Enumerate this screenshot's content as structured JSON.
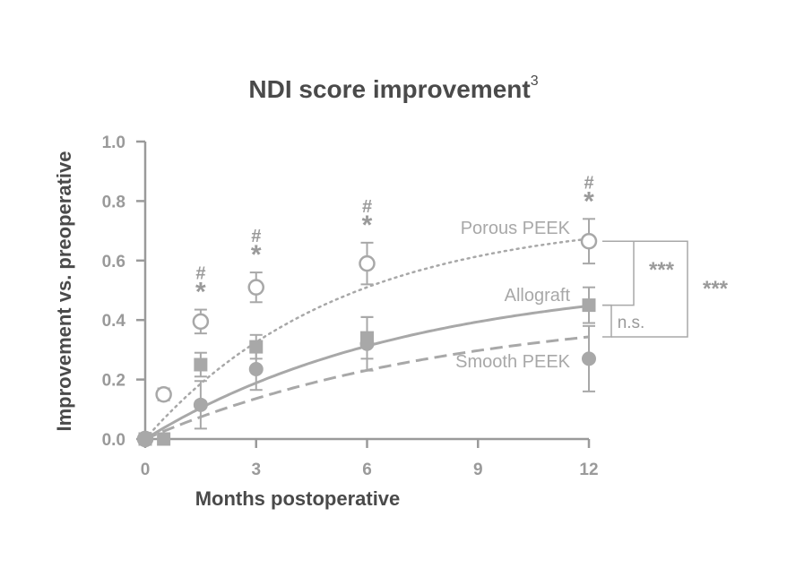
{
  "colors": {
    "axis": "#9a9a9a",
    "series": "#a8a8a8",
    "title": "#4a4a4a",
    "annotation": "#9a9a9a"
  },
  "chart_data": {
    "type": "scatter",
    "title": "NDI score improvement",
    "title_superscript": "3",
    "xlabel": "Months postoperative",
    "ylabel": "Improvement vs. preoperative",
    "xlim": [
      0,
      12
    ],
    "ylim": [
      0,
      1.0
    ],
    "xticks": [
      0,
      3,
      6,
      9,
      12
    ],
    "xtick_labels": [
      "0",
      "3",
      "6",
      "9",
      "12"
    ],
    "yticks": [
      0,
      0.2,
      0.4,
      0.6,
      0.8,
      1.0
    ],
    "ytick_labels": [
      "0.0",
      "0.2",
      "0.4",
      "0.6",
      "0.8",
      "1.0"
    ],
    "grid": false,
    "series": [
      {
        "name": "Porous PEEK",
        "marker": "open-circle",
        "line": "dotted",
        "x": [
          0,
          0.5,
          1.5,
          3,
          6,
          12
        ],
        "y": [
          0.0,
          0.15,
          0.395,
          0.51,
          0.59,
          0.665
        ],
        "err": [
          0,
          0.02,
          0.04,
          0.05,
          0.07,
          0.075
        ],
        "fit_asymptote": 0.75,
        "fit_rate": 0.19
      },
      {
        "name": "Allograft",
        "marker": "filled-square",
        "line": "solid",
        "x": [
          0,
          0.5,
          1.5,
          3,
          6,
          12
        ],
        "y": [
          0.0,
          0.0,
          0.25,
          0.31,
          0.34,
          0.45
        ],
        "err": [
          0,
          0,
          0.04,
          0.04,
          0.07,
          0.06
        ],
        "fit_asymptote": 0.55,
        "fit_rate": 0.14
      },
      {
        "name": "Smooth PEEK",
        "marker": "filled-circle",
        "line": "dashed",
        "x": [
          0,
          1.5,
          3,
          6,
          12
        ],
        "y": [
          0.0,
          0.115,
          0.235,
          0.32,
          0.27
        ],
        "err": [
          0,
          0.08,
          0.07,
          0.09,
          0.11
        ],
        "fit_asymptote": 0.45,
        "fit_rate": 0.12
      }
    ],
    "significance_markers": [
      {
        "x": 1.5,
        "symbols": [
          "#",
          "*"
        ]
      },
      {
        "x": 3,
        "symbols": [
          "#",
          "*"
        ]
      },
      {
        "x": 6,
        "symbols": [
          "#",
          "*"
        ]
      },
      {
        "x": 12,
        "symbols": [
          "#",
          "*"
        ]
      }
    ],
    "comparison_brackets": [
      {
        "between": [
          "Porous PEEK",
          "Allograft"
        ],
        "label": "***"
      },
      {
        "between": [
          "Porous PEEK",
          "Smooth PEEK"
        ],
        "label": "***"
      },
      {
        "between": [
          "Allograft",
          "Smooth PEEK"
        ],
        "label": "n.s."
      }
    ]
  }
}
